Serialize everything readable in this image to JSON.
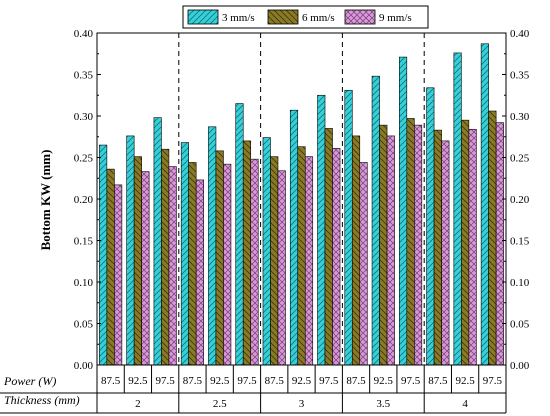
{
  "chart_data": {
    "type": "bar",
    "ylabel": "Bottom KW (mm)",
    "ylim": [
      0,
      0.4
    ],
    "y_ticks": [
      "0.00",
      "0.05",
      "0.10",
      "0.15",
      "0.20",
      "0.25",
      "0.30",
      "0.35",
      "0.40"
    ],
    "grid": false,
    "legend_position": "top",
    "row_labels": {
      "power": "Power (W)",
      "thickness": "Thickness (mm)"
    },
    "thickness_groups": [
      "2",
      "2.5",
      "3",
      "3.5",
      "4"
    ],
    "power_levels": [
      "87.5",
      "92.5",
      "97.5"
    ],
    "series": [
      {
        "name": "3 mm/s",
        "color": "#33d1d9",
        "pattern": "diagonal-hatch",
        "values": [
          0.265,
          0.276,
          0.298,
          0.268,
          0.287,
          0.315,
          0.274,
          0.307,
          0.325,
          0.331,
          0.348,
          0.371,
          0.334,
          0.376,
          0.387
        ]
      },
      {
        "name": "6 mm/s",
        "color": "#8a7a26",
        "pattern": "diagonal-hatch-reverse",
        "values": [
          0.236,
          0.251,
          0.26,
          0.244,
          0.258,
          0.27,
          0.251,
          0.263,
          0.285,
          0.276,
          0.289,
          0.297,
          0.283,
          0.295,
          0.306
        ]
      },
      {
        "name": "9 mm/s",
        "color": "#d79ad7",
        "pattern": "crosshatch",
        "values": [
          0.217,
          0.233,
          0.239,
          0.223,
          0.242,
          0.248,
          0.234,
          0.251,
          0.261,
          0.244,
          0.276,
          0.289,
          0.27,
          0.284,
          0.292
        ]
      }
    ]
  }
}
